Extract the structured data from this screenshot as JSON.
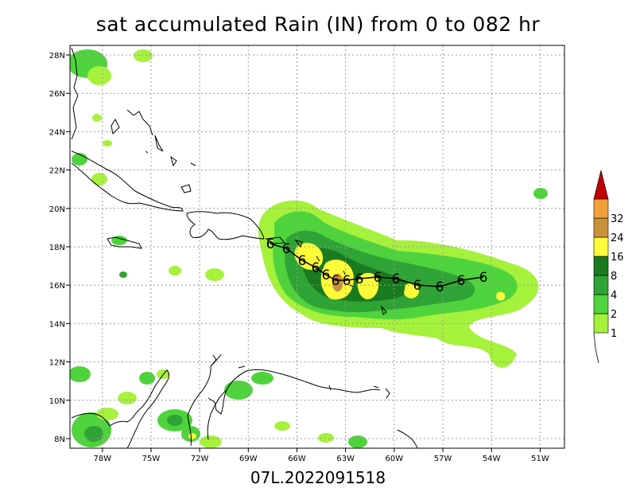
{
  "title": "sat accumulated Rain (IN) from 0 to 082 hr",
  "footer": "07L.2022091518",
  "lat_labels": [
    "28N",
    "26N",
    "24N",
    "22N",
    "20N",
    "18N",
    "16N",
    "14N",
    "12N",
    "10N",
    "8N"
  ],
  "lon_labels": [
    "78W",
    "75W",
    "72W",
    "69W",
    "66W",
    "63W",
    "60W",
    "57W",
    "54W",
    "51W"
  ],
  "colorbar": {
    "labels": [
      "1",
      "2",
      "4",
      "8",
      "16",
      "24",
      "32"
    ],
    "colors": [
      "#a6f13c",
      "#4fd33c",
      "#2fa335",
      "#1a7a1f",
      "#fdfb3a",
      "#c9913a",
      "#f0a13a",
      "#c00000"
    ]
  },
  "track_symbol": "6",
  "map_extent": {
    "lon": [
      -80,
      -49.5
    ],
    "lat": [
      7.5,
      28.5
    ]
  }
}
